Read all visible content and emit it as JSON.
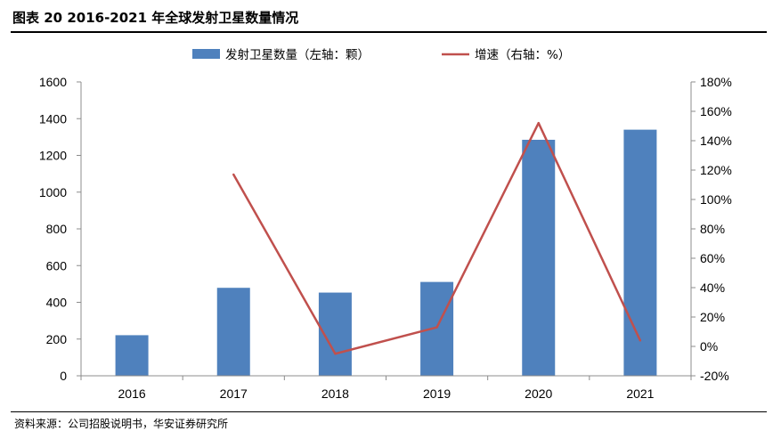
{
  "header": {
    "title": "图表 20 2016-2021 年全球发射卫星数量情况"
  },
  "footer": {
    "source": "资料来源：公司招股说明书，华安证券研究所"
  },
  "chart_data": {
    "type": "bar",
    "categories": [
      "2016",
      "2017",
      "2018",
      "2019",
      "2020",
      "2021"
    ],
    "series": [
      {
        "name": "发射卫星数量（左轴：颗）",
        "type": "bar",
        "axis": "left",
        "color": "#4F81BD",
        "values": [
          221,
          479,
          453,
          511,
          1285,
          1340
        ]
      },
      {
        "name": "增速（右轴：%）",
        "type": "line",
        "axis": "right",
        "color": "#C0504D",
        "values": [
          null,
          117,
          -5,
          13,
          152,
          4
        ]
      }
    ],
    "y_left": {
      "min": 0,
      "max": 1600,
      "step": 200,
      "ticks": [
        "0",
        "200",
        "400",
        "600",
        "800",
        "1000",
        "1200",
        "1400",
        "1600"
      ]
    },
    "y_right": {
      "min": -20,
      "max": 180,
      "step": 20,
      "ticks": [
        "-20%",
        "0%",
        "20%",
        "40%",
        "60%",
        "80%",
        "100%",
        "120%",
        "140%",
        "160%",
        "180%"
      ]
    },
    "legend_position": "top",
    "grid": false
  }
}
